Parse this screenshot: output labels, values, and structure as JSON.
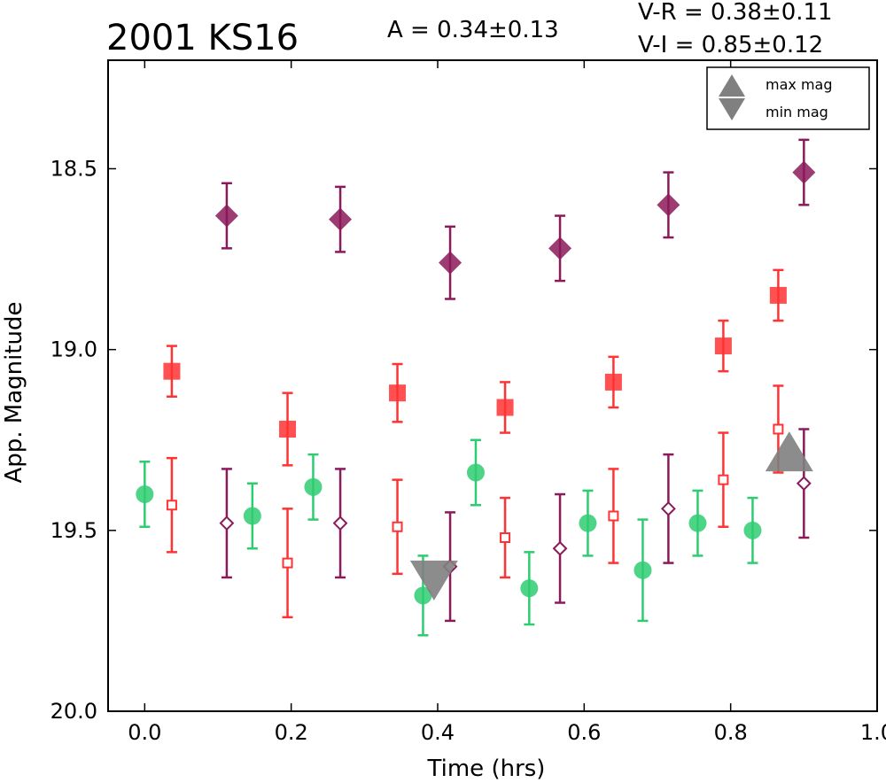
{
  "chart_data": {
    "type": "scatter",
    "title": "2001 KS16",
    "amplitude_text": "A  = 0.34±0.13",
    "vr_text": "V-R = 0.38±0.11",
    "vi_text": "V-I  = 0.85±0.12",
    "xlabel": "Time (hrs)",
    "ylabel": "App. Magnitude",
    "xlim": [
      -0.05,
      1.0
    ],
    "ylim": [
      20.0,
      18.2
    ],
    "y_inverted": true,
    "grid": false,
    "legend_position": "top-right",
    "x_ticks": [
      "0.0",
      "0.2",
      "0.4",
      "0.6",
      "0.8",
      "1.0"
    ],
    "y_ticks": [
      "18.5",
      "19.0",
      "19.5",
      "20.0"
    ],
    "colors": {
      "green": "#2ecc71",
      "red": "#ff3333",
      "purple": "#8b1a5a",
      "gray": "#808080"
    },
    "series": [
      {
        "marker": "circle",
        "color": "green",
        "filled": true,
        "points": [
          {
            "x": 0.0,
            "y": 19.4,
            "err": 0.09
          },
          {
            "x": 0.147,
            "y": 19.46,
            "err": 0.09
          },
          {
            "x": 0.23,
            "y": 19.38,
            "err": 0.09
          },
          {
            "x": 0.38,
            "y": 19.68,
            "err": 0.11
          },
          {
            "x": 0.452,
            "y": 19.34,
            "err": 0.09
          },
          {
            "x": 0.525,
            "y": 19.66,
            "err": 0.1
          },
          {
            "x": 0.605,
            "y": 19.48,
            "err": 0.09
          },
          {
            "x": 0.68,
            "y": 19.61,
            "err": 0.14
          },
          {
            "x": 0.755,
            "y": 19.48,
            "err": 0.09
          },
          {
            "x": 0.83,
            "y": 19.5,
            "err": 0.09
          }
        ]
      },
      {
        "marker": "square",
        "color": "red",
        "filled": true,
        "points": [
          {
            "x": 0.037,
            "y": 19.06,
            "err": 0.07
          },
          {
            "x": 0.195,
            "y": 19.22,
            "err": 0.1
          },
          {
            "x": 0.345,
            "y": 19.12,
            "err": 0.08
          },
          {
            "x": 0.492,
            "y": 19.16,
            "err": 0.07
          },
          {
            "x": 0.64,
            "y": 19.09,
            "err": 0.07
          },
          {
            "x": 0.79,
            "y": 18.99,
            "err": 0.07
          },
          {
            "x": 0.865,
            "y": 18.85,
            "err": 0.07
          }
        ]
      },
      {
        "marker": "square",
        "color": "red",
        "filled": false,
        "points": [
          {
            "x": 0.037,
            "y": 19.43,
            "err": 0.13
          },
          {
            "x": 0.195,
            "y": 19.59,
            "err": 0.15
          },
          {
            "x": 0.345,
            "y": 19.49,
            "err": 0.13
          },
          {
            "x": 0.492,
            "y": 19.52,
            "err": 0.11
          },
          {
            "x": 0.64,
            "y": 19.46,
            "err": 0.13
          },
          {
            "x": 0.79,
            "y": 19.36,
            "err": 0.13
          },
          {
            "x": 0.865,
            "y": 19.22,
            "err": 0.12
          }
        ]
      },
      {
        "marker": "diamond",
        "color": "purple",
        "filled": true,
        "points": [
          {
            "x": 0.112,
            "y": 18.63,
            "err": 0.09
          },
          {
            "x": 0.267,
            "y": 18.64,
            "err": 0.09
          },
          {
            "x": 0.417,
            "y": 18.76,
            "err": 0.1
          },
          {
            "x": 0.567,
            "y": 18.72,
            "err": 0.09
          },
          {
            "x": 0.715,
            "y": 18.6,
            "err": 0.09
          },
          {
            "x": 0.9,
            "y": 18.51,
            "err": 0.09
          }
        ]
      },
      {
        "marker": "diamond",
        "color": "purple",
        "filled": false,
        "points": [
          {
            "x": 0.112,
            "y": 19.48,
            "err": 0.15
          },
          {
            "x": 0.267,
            "y": 19.48,
            "err": 0.15
          },
          {
            "x": 0.417,
            "y": 19.6,
            "err": 0.15
          },
          {
            "x": 0.567,
            "y": 19.55,
            "err": 0.15
          },
          {
            "x": 0.715,
            "y": 19.44,
            "err": 0.15
          },
          {
            "x": 0.9,
            "y": 19.37,
            "err": 0.15
          }
        ]
      }
    ],
    "extrema": [
      {
        "name": "max mag",
        "marker": "triangle-up",
        "x": 0.88,
        "y": 19.3
      },
      {
        "name": "min mag",
        "marker": "triangle-down",
        "x": 0.395,
        "y": 19.62
      }
    ],
    "legend": [
      {
        "label": "max mag",
        "marker": "triangle-up"
      },
      {
        "label": "min mag",
        "marker": "triangle-down"
      }
    ]
  }
}
